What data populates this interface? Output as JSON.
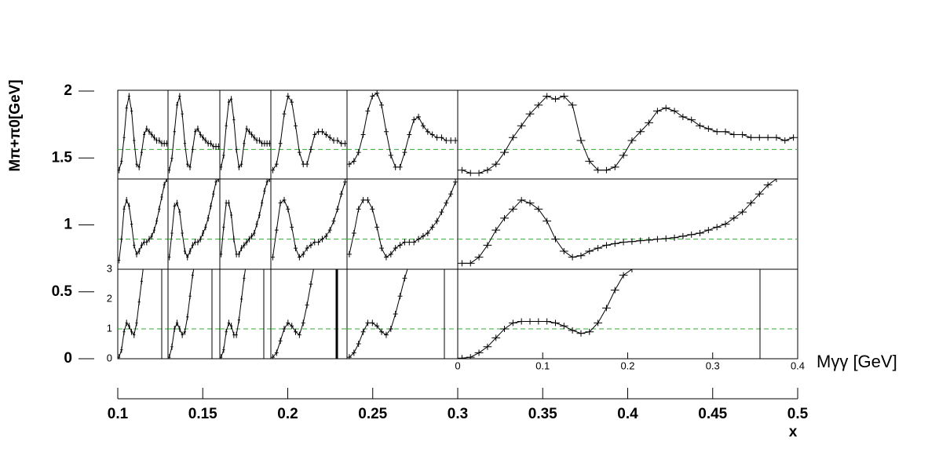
{
  "chart_data": [
    {
      "type": "frame",
      "ylabel": "Mπ+π0[GeV]",
      "xlabel": "x",
      "ylim": [
        0,
        2
      ],
      "yticks": [
        0,
        0.5,
        1,
        1.5,
        2
      ],
      "xlim": [
        0.1,
        0.5
      ],
      "xticks": [
        0.1,
        0.15,
        0.2,
        0.25,
        0.3,
        0.35,
        0.4,
        0.45,
        0.5
      ]
    },
    {
      "type": "panels",
      "xlabel": "Mγγ [GeV]",
      "color": "#000000",
      "reference_color": "#33aa33",
      "xlim": [
        0,
        0.4
      ],
      "xticks": [
        0,
        0.1,
        0.2,
        0.3,
        0.4
      ],
      "ylim": [
        0,
        3
      ],
      "yticks": [
        0,
        1,
        2,
        3
      ],
      "reference": 1,
      "rows": [
        [
          [
            0.3,
            0.6,
            1.4,
            2.4,
            2.8,
            2.3,
            1.3,
            0.5,
            0.4,
            0.9,
            1.5,
            1.7,
            1.6,
            1.5,
            1.4,
            1.3,
            1.3,
            1.2,
            1.2,
            1.2
          ],
          [
            0.3,
            0.7,
            1.6,
            2.5,
            2.8,
            2.2,
            1.2,
            0.5,
            0.4,
            1.0,
            1.6,
            1.7,
            1.5,
            1.4,
            1.3,
            1.2,
            1.2,
            1.1,
            1.1,
            1.1
          ],
          [
            0.4,
            0.8,
            1.8,
            2.6,
            2.7,
            2.0,
            1.0,
            0.4,
            0.5,
            1.2,
            1.7,
            1.6,
            1.5,
            1.4,
            1.3,
            1.3,
            1.2,
            1.2,
            1.2,
            1.2
          ],
          [
            0.3,
            0.5,
            1.2,
            2.2,
            2.8,
            2.6,
            1.8,
            0.9,
            0.5,
            0.5,
            1.0,
            1.5,
            1.6,
            1.6,
            1.5,
            1.4,
            1.3,
            1.3,
            1.2,
            1.2
          ],
          [
            0.5,
            0.6,
            0.9,
            1.5,
            2.3,
            2.8,
            2.9,
            2.5,
            1.6,
            0.8,
            0.4,
            0.4,
            0.9,
            1.5,
            2.0,
            2.1,
            1.8,
            1.6,
            1.5,
            1.4,
            1.4,
            1.3,
            1.3,
            1.3
          ],
          [
            0.3,
            0.2,
            0.2,
            0.3,
            0.5,
            0.9,
            1.4,
            1.8,
            2.2,
            2.5,
            2.8,
            2.7,
            2.8,
            2.5,
            1.3,
            0.6,
            0.3,
            0.3,
            0.4,
            0.8,
            1.3,
            1.6,
            1.9,
            2.3,
            2.4,
            2.3,
            2.1,
            2.0,
            1.8,
            1.7,
            1.6,
            1.6,
            1.5,
            1.5,
            1.4,
            1.4,
            1.4,
            1.4,
            1.3,
            1.4
          ]
        ],
        [
          [
            0.3,
            1.0,
            2.0,
            2.3,
            2.1,
            1.5,
            0.8,
            0.5,
            0.6,
            0.8,
            0.9,
            0.9,
            1.0,
            1.1,
            1.3,
            1.6,
            2.0,
            2.4,
            2.8,
            3.0
          ],
          [
            0.4,
            1.2,
            2.1,
            2.2,
            1.9,
            1.2,
            0.6,
            0.4,
            0.6,
            0.8,
            0.9,
            0.9,
            1.0,
            1.2,
            1.4,
            1.7,
            2.1,
            2.5,
            2.9,
            3.0
          ],
          [
            0.5,
            1.4,
            2.2,
            2.2,
            1.8,
            1.0,
            0.5,
            0.5,
            0.7,
            0.8,
            0.9,
            1.0,
            1.1,
            1.2,
            1.5,
            1.8,
            2.2,
            2.6,
            2.9,
            3.0
          ],
          [
            0.4,
            1.3,
            2.2,
            2.3,
            2.0,
            1.4,
            0.7,
            0.4,
            0.5,
            0.7,
            0.8,
            0.9,
            0.9,
            1.0,
            1.1,
            1.3,
            1.6,
            2.0,
            2.5,
            2.9
          ],
          [
            0.5,
            1.2,
            2.0,
            2.3,
            2.3,
            2.0,
            1.4,
            0.7,
            0.4,
            0.5,
            0.7,
            0.8,
            0.9,
            0.9,
            0.9,
            1.0,
            1.1,
            1.2,
            1.4,
            1.6,
            1.9,
            2.2,
            2.5,
            2.9
          ],
          [
            0.2,
            0.2,
            0.4,
            0.8,
            1.3,
            1.7,
            2.0,
            2.3,
            2.2,
            2.0,
            1.6,
            1.0,
            0.6,
            0.4,
            0.45,
            0.6,
            0.7,
            0.8,
            0.85,
            0.9,
            0.92,
            0.95,
            0.97,
            1.0,
            1.02,
            1.05,
            1.1,
            1.15,
            1.2,
            1.3,
            1.4,
            1.5,
            1.7,
            1.9,
            2.2,
            2.5,
            2.8,
            3.0,
            null,
            null
          ]
        ],
        [
          [
            0.05,
            0.3,
            0.9,
            1.2,
            1.1,
            0.9,
            0.8,
            1.2,
            1.9,
            2.6,
            3.3,
            null,
            null,
            null,
            null,
            null,
            null,
            null,
            null,
            null
          ],
          [
            0.05,
            0.4,
            1.0,
            1.2,
            1.0,
            0.8,
            0.9,
            1.4,
            2.1,
            2.8,
            3.3,
            null,
            null,
            null,
            null,
            null,
            null,
            null,
            null,
            null
          ],
          [
            0.05,
            0.3,
            0.9,
            1.2,
            1.1,
            0.8,
            0.8,
            1.3,
            2.0,
            2.7,
            3.3,
            null,
            null,
            null,
            null,
            null,
            null,
            null,
            null,
            null
          ],
          [
            0.05,
            0.2,
            0.6,
            1.0,
            1.2,
            1.1,
            0.9,
            0.8,
            1.2,
            1.8,
            2.5,
            3.2,
            null,
            null,
            null,
            null,
            null,
            null,
            null,
            null
          ],
          [
            0.05,
            0.2,
            0.5,
            0.9,
            1.2,
            1.2,
            1.1,
            0.9,
            0.8,
            1.0,
            1.5,
            2.1,
            2.7,
            3.2,
            null,
            null,
            null,
            null,
            null,
            null,
            null,
            null,
            null,
            null
          ],
          [
            0.02,
            0.05,
            0.2,
            0.4,
            0.7,
            1.0,
            1.2,
            1.25,
            1.25,
            1.25,
            1.25,
            1.2,
            1.1,
            0.95,
            0.85,
            0.9,
            1.2,
            1.7,
            2.3,
            2.8,
            3.0,
            null,
            null,
            null,
            null,
            null,
            null,
            null,
            null,
            null,
            null,
            null,
            null,
            null,
            null,
            null,
            null,
            null,
            null,
            null
          ]
        ]
      ]
    }
  ]
}
